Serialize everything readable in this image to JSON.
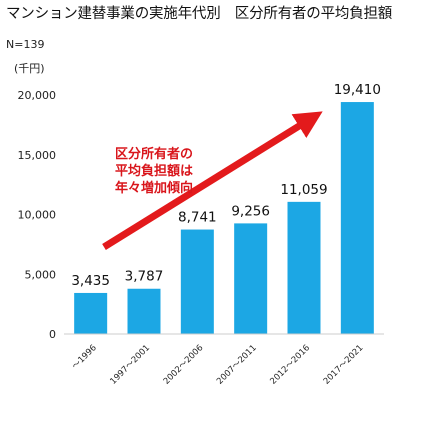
{
  "title": "マンション建替事業の実施年代別　区分所有者の平均負担額",
  "n_label": "N=139",
  "unit_label": "(千円)",
  "annotation_lines": [
    "区分所有者の",
    "平均負担額は",
    "年々増加傾向"
  ],
  "colors": {
    "bar": "#1ca7e4",
    "arrow": "#e31a1c",
    "annotation": "#d9161c",
    "axis": "#cccccc"
  },
  "chart_data": {
    "type": "bar",
    "categories": [
      "～1996",
      "1997～2001",
      "2002～2006",
      "2007～2011",
      "2012～2016",
      "2017～2021"
    ],
    "values": [
      3435,
      3787,
      8741,
      9256,
      11059,
      19410
    ],
    "value_labels": [
      "3,435",
      "3,787",
      "8,741",
      "9,256",
      "11,059",
      "19,410"
    ],
    "ylim": [
      0,
      20000
    ],
    "yticks": [
      0,
      5000,
      10000,
      15000,
      20000
    ],
    "ytick_labels": [
      "0",
      "5,000",
      "10,000",
      "15,000",
      "20,000"
    ],
    "grid": false
  }
}
